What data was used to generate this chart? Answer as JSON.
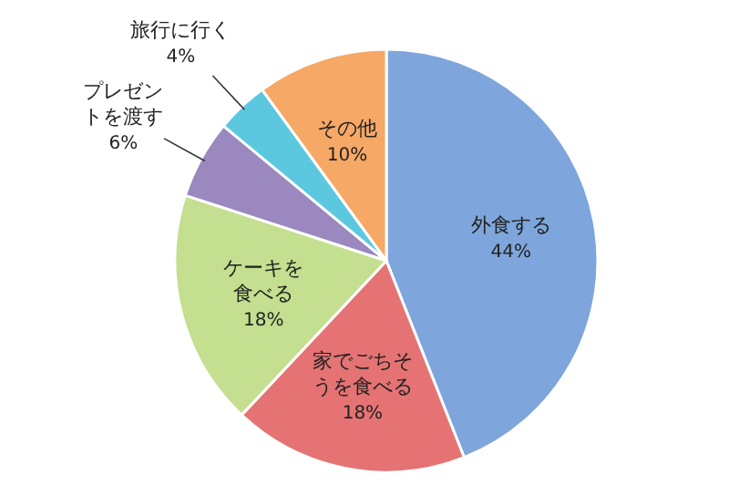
{
  "chart_data": {
    "type": "pie",
    "categories": [
      "外食する",
      "家でごちそうを食べる",
      "ケーキを食べる",
      "プレゼントを渡す",
      "旅行に行く",
      "その他"
    ],
    "values": [
      44,
      18,
      18,
      6,
      4,
      10
    ],
    "value_labels": [
      "44%",
      "18%",
      "18%",
      "6%",
      "4%",
      "10%"
    ],
    "colors": [
      "#7ea6dc",
      "#e57373",
      "#c3df8f",
      "#9a88bf",
      "#5cc8e0",
      "#f6a866"
    ],
    "legend": false
  }
}
